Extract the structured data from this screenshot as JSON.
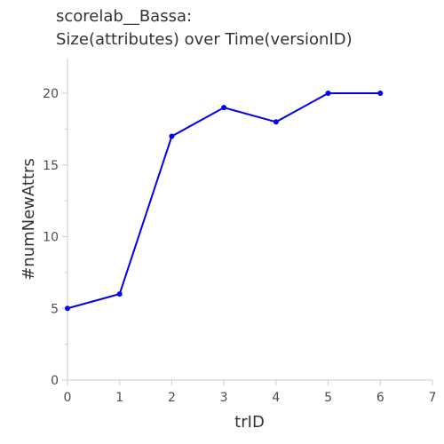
{
  "chart_data": {
    "type": "line",
    "title_lines": [
      "scorelab__Bassa:",
      "Size(attributes) over Time(versionID)"
    ],
    "xlabel": "trID",
    "ylabel": "#numNewAttrs",
    "xlim": [
      0,
      7
    ],
    "ylim": [
      0,
      22
    ],
    "xticks": [
      0,
      1,
      2,
      3,
      4,
      5,
      6,
      7
    ],
    "yticks": [
      0,
      5,
      10,
      15,
      20
    ],
    "grid": false,
    "series": [
      {
        "color": "#0000ee",
        "x": [
          0,
          1,
          2,
          3,
          4,
          5,
          6
        ],
        "y": [
          5,
          6,
          17,
          19,
          18,
          20,
          20
        ]
      }
    ]
  }
}
